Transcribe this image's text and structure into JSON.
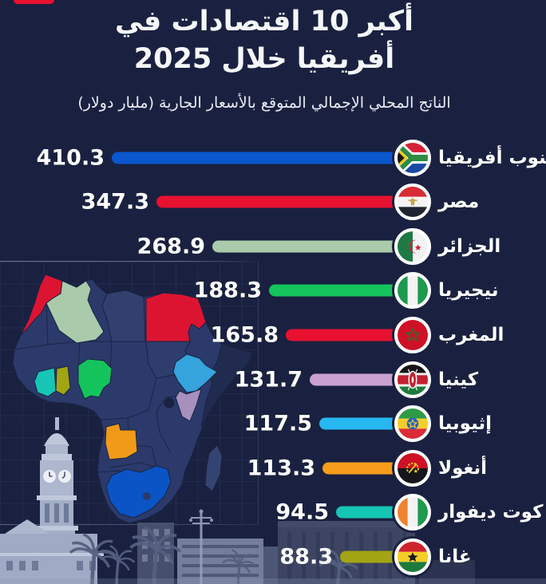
{
  "page": {
    "title_line1": "أكبر 10 اقتصادات في",
    "title_line2": "أفريقيا خلال 2025",
    "subtitle": "الناتج المحلي الإجمالي المتوقع بالأسعار الجارية (مليار دولار)",
    "background_color": "#1A2140",
    "text_color": "#FFFFFF",
    "brand_ribbon_color": "#E8102E"
  },
  "chart_data": {
    "type": "bar",
    "orientation": "horizontal",
    "direction": "rtl",
    "title": "أكبر 10 اقتصادات في أفريقيا خلال 2025",
    "subtitle": "الناتج المحلي الإجمالي المتوقع بالأسعار الجارية (مليار دولار)",
    "unit": "مليار دولار",
    "xlim": [
      0,
      410.3
    ],
    "grid": false,
    "value_labels": "outside-end",
    "series": [
      {
        "name": "جنوب أفريقيا",
        "name_en": "South Africa",
        "value": 410.3,
        "color": "#0A57CE",
        "flag": "za"
      },
      {
        "name": "مصر",
        "name_en": "Egypt",
        "value": 347.3,
        "color": "#E81130",
        "flag": "eg"
      },
      {
        "name": "الجزائر",
        "name_en": "Algeria",
        "value": 268.9,
        "color": "#A9CBAB",
        "flag": "dz"
      },
      {
        "name": "نيجيريا",
        "name_en": "Nigeria",
        "value": 188.3,
        "color": "#13C55C",
        "flag": "ng"
      },
      {
        "name": "المغرب",
        "name_en": "Morocco",
        "value": 165.8,
        "color": "#E81130",
        "flag": "ma"
      },
      {
        "name": "كينيا",
        "name_en": "Kenya",
        "value": 131.7,
        "color": "#C9A2CF",
        "flag": "ke"
      },
      {
        "name": "إثيوبيا",
        "name_en": "Ethiopia",
        "value": 117.5,
        "color": "#27B8F2",
        "flag": "et"
      },
      {
        "name": "أنغولا",
        "name_en": "Angola",
        "value": 113.3,
        "color": "#F89C1B",
        "flag": "ao"
      },
      {
        "name": "كوت ديفوار",
        "name_en": "Côte d'Ivoire",
        "value": 94.5,
        "color": "#15C6B5",
        "flag": "ci"
      },
      {
        "name": "غانا",
        "name_en": "Ghana",
        "value": 88.3,
        "color": "#A2A513",
        "flag": "gh"
      }
    ]
  },
  "map": {
    "region": "Africa",
    "base_country_color": "#2B3A6B",
    "border_color": "#19223F",
    "highlights": [
      {
        "country_en": "Morocco",
        "color": "#DC1432"
      },
      {
        "country_en": "Algeria",
        "color": "#A9CBAB"
      },
      {
        "country_en": "Egypt",
        "color": "#DC1432"
      },
      {
        "country_en": "Côte d'Ivoire",
        "color": "#17C5B4"
      },
      {
        "country_en": "Ghana",
        "color": "#A2A513"
      },
      {
        "country_en": "Nigeria",
        "color": "#13C45C"
      },
      {
        "country_en": "Ethiopia",
        "color": "#35A3DC"
      },
      {
        "country_en": "Kenya",
        "color": "#A78FBE"
      },
      {
        "country_en": "Angola",
        "color": "#F09A18"
      },
      {
        "country_en": "South Africa",
        "color": "#0B54C6"
      },
      {
        "country_en": "Madagascar",
        "color": "#344472"
      }
    ]
  }
}
